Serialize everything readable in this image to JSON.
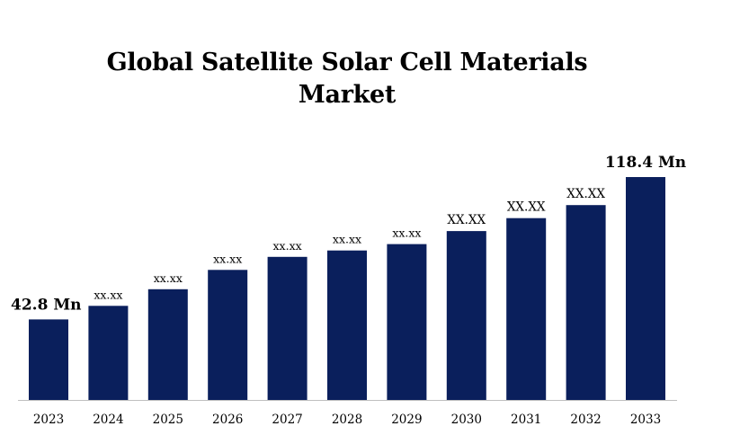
{
  "chart_data": {
    "type": "bar",
    "title": "Global Satellite Solar Cell Materials Market",
    "categories": [
      "2023",
      "2024",
      "2025",
      "2026",
      "2027",
      "2028",
      "2029",
      "2030",
      "2031",
      "2032",
      "2033"
    ],
    "values": [
      42.8,
      50.0,
      58.8,
      69.1,
      76.0,
      79.4,
      82.8,
      89.7,
      96.6,
      103.5,
      118.4
    ],
    "data_labels": [
      "42.8 Mn",
      "xx.xx",
      "xx.xx",
      "xx.xx",
      "xx.xx",
      "xx.xx",
      "xx.xx",
      "XX.XX",
      "XX.XX",
      "XX.XX",
      "118.4 Mn"
    ],
    "xlabel": "",
    "ylabel": "",
    "ylim": [
      0,
      118.4
    ],
    "grid": false,
    "legend": "none",
    "colors": {
      "bar": "#0a1f5c",
      "axis": "#bfbfbf",
      "text": "#000000"
    }
  }
}
